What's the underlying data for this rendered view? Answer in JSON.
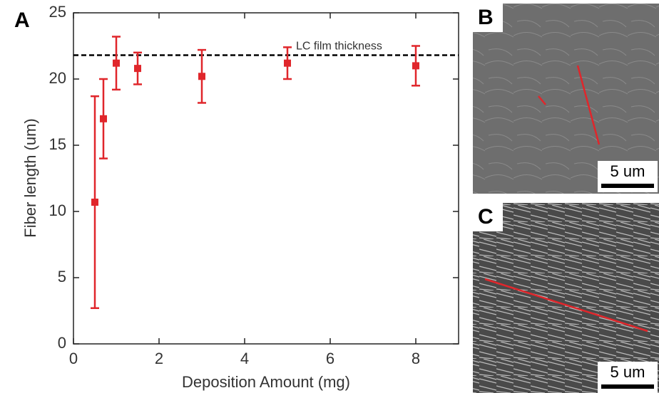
{
  "chart_data": {
    "type": "scatter",
    "panel_label": "A",
    "xlabel": "Deposition Amount (mg)",
    "ylabel": "Fiber length (um)",
    "x": [
      0.5,
      0.7,
      1,
      1.5,
      3,
      5,
      8
    ],
    "series": [
      {
        "color": "#e0262b",
        "values": [
          10.7,
          17,
          21.2,
          20.8,
          20.2,
          21.2,
          21
        ],
        "errors": [
          8,
          3,
          2,
          1.2,
          2,
          1.2,
          1.5
        ]
      }
    ],
    "reference_line": {
      "label": "LC film thickness",
      "value": 21.8
    },
    "xlim": [
      0,
      9
    ],
    "ylim": [
      0,
      25
    ],
    "xticks": [
      0,
      2,
      4,
      6,
      8
    ],
    "yticks": [
      0,
      5,
      10,
      15,
      20,
      25
    ]
  },
  "images": [
    {
      "label": "B",
      "scale_bar": "5 um"
    },
    {
      "label": "C",
      "scale_bar": "5 um"
    }
  ]
}
